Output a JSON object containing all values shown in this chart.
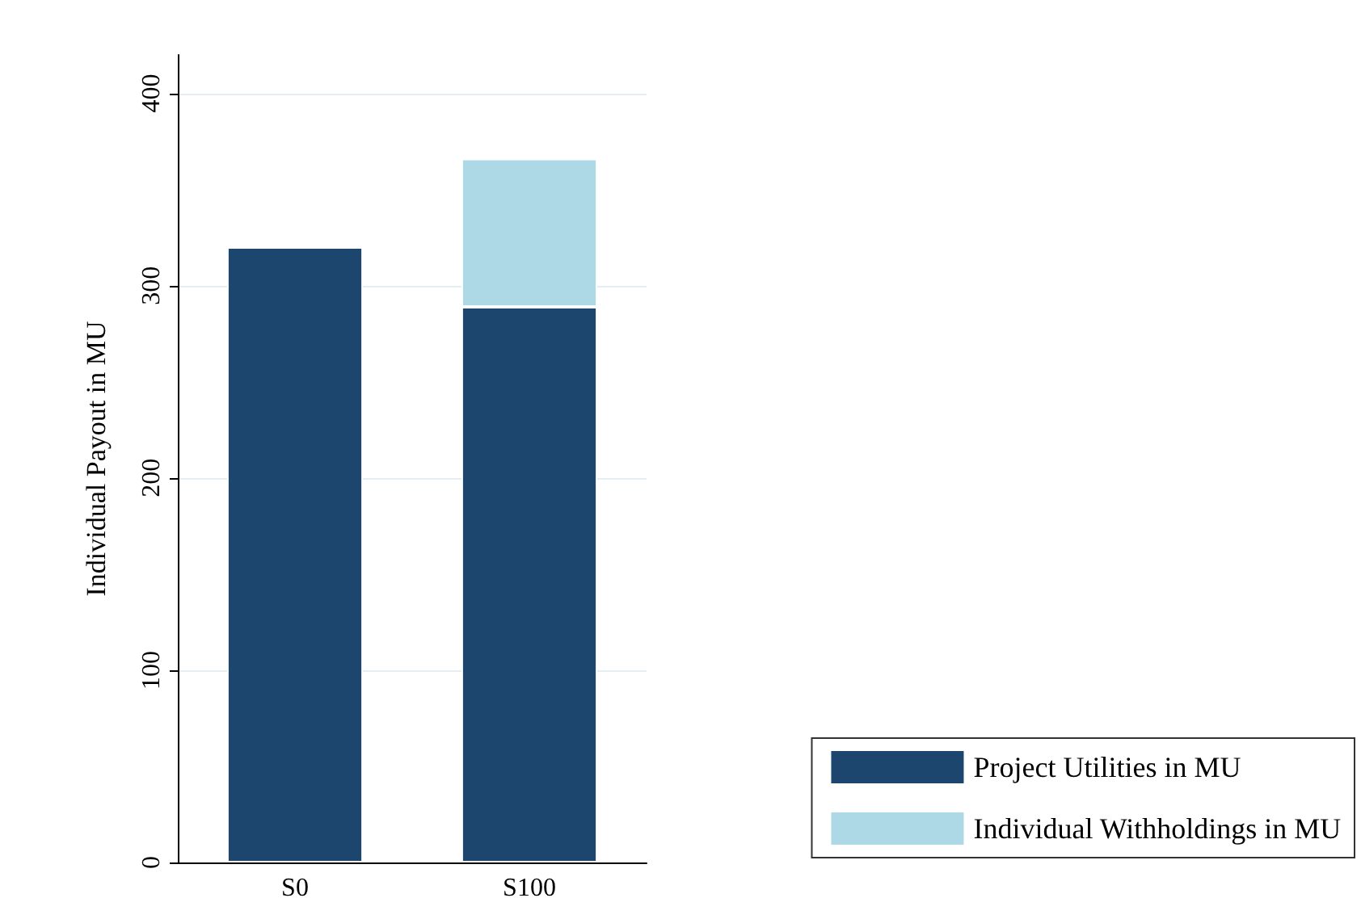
{
  "chart_data": {
    "type": "bar",
    "stacked": true,
    "categories": [
      "S0",
      "S100"
    ],
    "ylabel": "Individual Payout in MU",
    "ylim": [
      0,
      420
    ],
    "yticks": [
      0,
      100,
      200,
      300,
      400
    ],
    "grid": "y",
    "legend": "bottom right",
    "series": [
      {
        "name": "Project Utilities in MU",
        "color": "#1c466e",
        "values": [
          320,
          289
        ]
      },
      {
        "name": "Individual Withholdings in MU",
        "color": "#add8e6",
        "values": [
          null,
          77
        ]
      }
    ]
  }
}
